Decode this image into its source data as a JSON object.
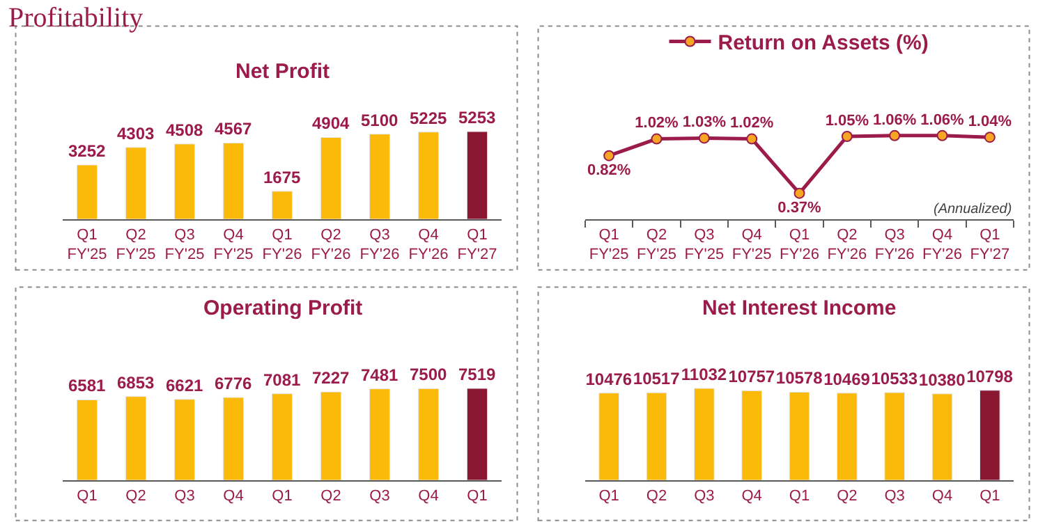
{
  "chart_data": [
    {
      "type": "other",
      "title": "Profitability"
    },
    {
      "type": "bar",
      "title": "Net Profit",
      "categories": [
        "Q1\nFY'25",
        "Q2\nFY'25",
        "Q3\nFY'25",
        "Q4\nFY'25",
        "Q1\nFY'26",
        "Q2\nFY'26",
        "Q3\nFY'26",
        "Q4\nFY'26",
        "Q1\nFY'27"
      ],
      "values": [
        3252,
        4303,
        4508,
        4567,
        1675,
        4904,
        5100,
        5225,
        5253
      ],
      "colors": [
        "#fbb909",
        "#fbb909",
        "#fbb909",
        "#fbb909",
        "#fbb909",
        "#fbb909",
        "#fbb909",
        "#fbb909",
        "#8c1730"
      ],
      "data_labels": true,
      "tick_labels": "x",
      "legend": false
    },
    {
      "type": "line",
      "categories": [
        "Q1\nFY'25",
        "Q2\nFY'25",
        "Q3\nFY'25",
        "Q4\nFY'25",
        "Q1\nFY'26",
        "Q2\nFY'26",
        "Q3\nFY'26",
        "Q4\nFY'26",
        "Q1\nFY'27"
      ],
      "series": [
        {
          "name": "Return on Assets (%)",
          "color": "#9b1b4a",
          "values": [
            0.82,
            1.02,
            1.03,
            1.02,
            0.37,
            1.05,
            1.06,
            1.06,
            1.04
          ],
          "value_labels": [
            "0.82%",
            "1.02%",
            "1.03%",
            "1.02%",
            "0.37%",
            "1.05%",
            "1.06%",
            "1.06%",
            "1.04%"
          ]
        }
      ],
      "annotations": [
        "(Annualized)"
      ],
      "marker": "circle",
      "line_style": "solid",
      "tick_labels": "x",
      "legend": "top"
    },
    {
      "type": "bar",
      "title": "Operating Profit",
      "categories": [
        "Q1",
        "Q2",
        "Q3",
        "Q4",
        "Q1",
        "Q2",
        "Q3",
        "Q4",
        "Q1"
      ],
      "values": [
        6581,
        6853,
        6621,
        6776,
        7081,
        7227,
        7481,
        7500,
        7519
      ],
      "colors": [
        "#fbb909",
        "#fbb909",
        "#fbb909",
        "#fbb909",
        "#fbb909",
        "#fbb909",
        "#fbb909",
        "#fbb909",
        "#8c1730"
      ],
      "data_labels": true,
      "tick_labels": "x",
      "legend": false
    },
    {
      "type": "bar",
      "title": "Net Interest Income",
      "categories": [
        "Q1",
        "Q2",
        "Q3",
        "Q4",
        "Q1",
        "Q2",
        "Q3",
        "Q4",
        "Q1"
      ],
      "values": [
        10476,
        10517,
        11032,
        10757,
        10578,
        10469,
        10533,
        10380,
        10798
      ],
      "colors": [
        "#fbb909",
        "#fbb909",
        "#fbb909",
        "#fbb909",
        "#fbb909",
        "#fbb909",
        "#fbb909",
        "#fbb909",
        "#8c1730"
      ],
      "data_labels": true,
      "tick_labels": "x",
      "legend": false
    }
  ]
}
